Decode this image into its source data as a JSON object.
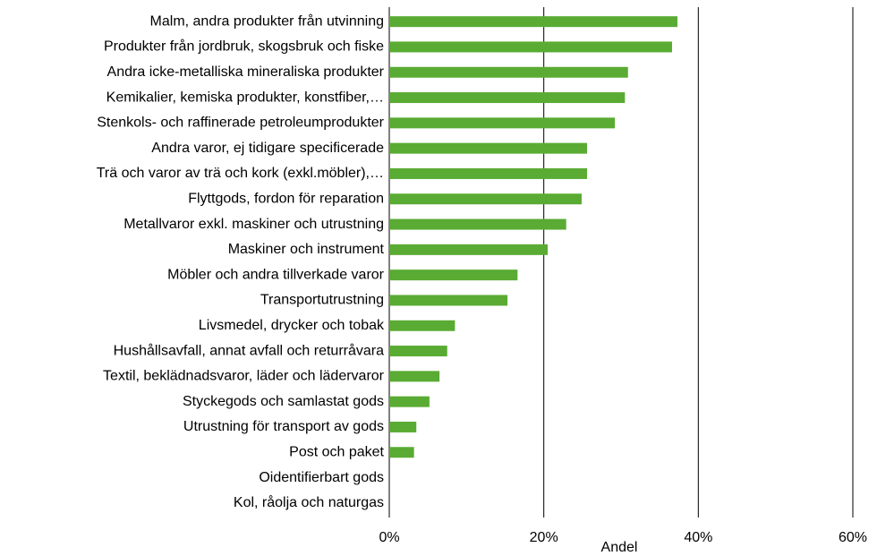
{
  "chart_data": {
    "type": "barh",
    "categories": [
      "Malm, andra produkter från utvinning",
      "Produkter från jordbruk, skogsbruk och fiske",
      "Andra icke-metalliska mineraliska produkter",
      "Kemikalier, kemiska produkter, konstfiber,…",
      "Stenkols- och raffinerade petroleumprodukter",
      "Andra varor, ej tidigare specificerade",
      "Trä och varor av trä och kork (exkl.möbler),…",
      "Flyttgods, fordon för reparation",
      "Metallvaror exkl. maskiner och utrustning",
      "Maskiner och instrument",
      "Möbler och andra tillverkade varor",
      "Transportutrustning",
      "Livsmedel, drycker och tobak",
      "Hushållsavfall, annat avfall och returråvara",
      "Textil, beklädnadsvaror, läder och lädervaror",
      "Styckegods och samlastat gods",
      "Utrustning för transport av gods",
      "Post och paket",
      "Oidentifierbart gods",
      "Kol, råolja och naturgas"
    ],
    "values": [
      37.3,
      36.6,
      30.9,
      30.5,
      29.2,
      25.6,
      25.6,
      24.9,
      22.9,
      20.5,
      16.6,
      15.3,
      8.5,
      7.5,
      6.5,
      5.2,
      3.5,
      3.2,
      0,
      0
    ],
    "color": "#5aab33",
    "xlabel": "Andel",
    "xlim": [
      0,
      60
    ],
    "xticks": [
      {
        "value": 0,
        "label": "0%"
      },
      {
        "value": 20,
        "label": "20%"
      },
      {
        "value": 40,
        "label": "40%"
      },
      {
        "value": 60,
        "label": "60%"
      }
    ],
    "grid": true
  }
}
